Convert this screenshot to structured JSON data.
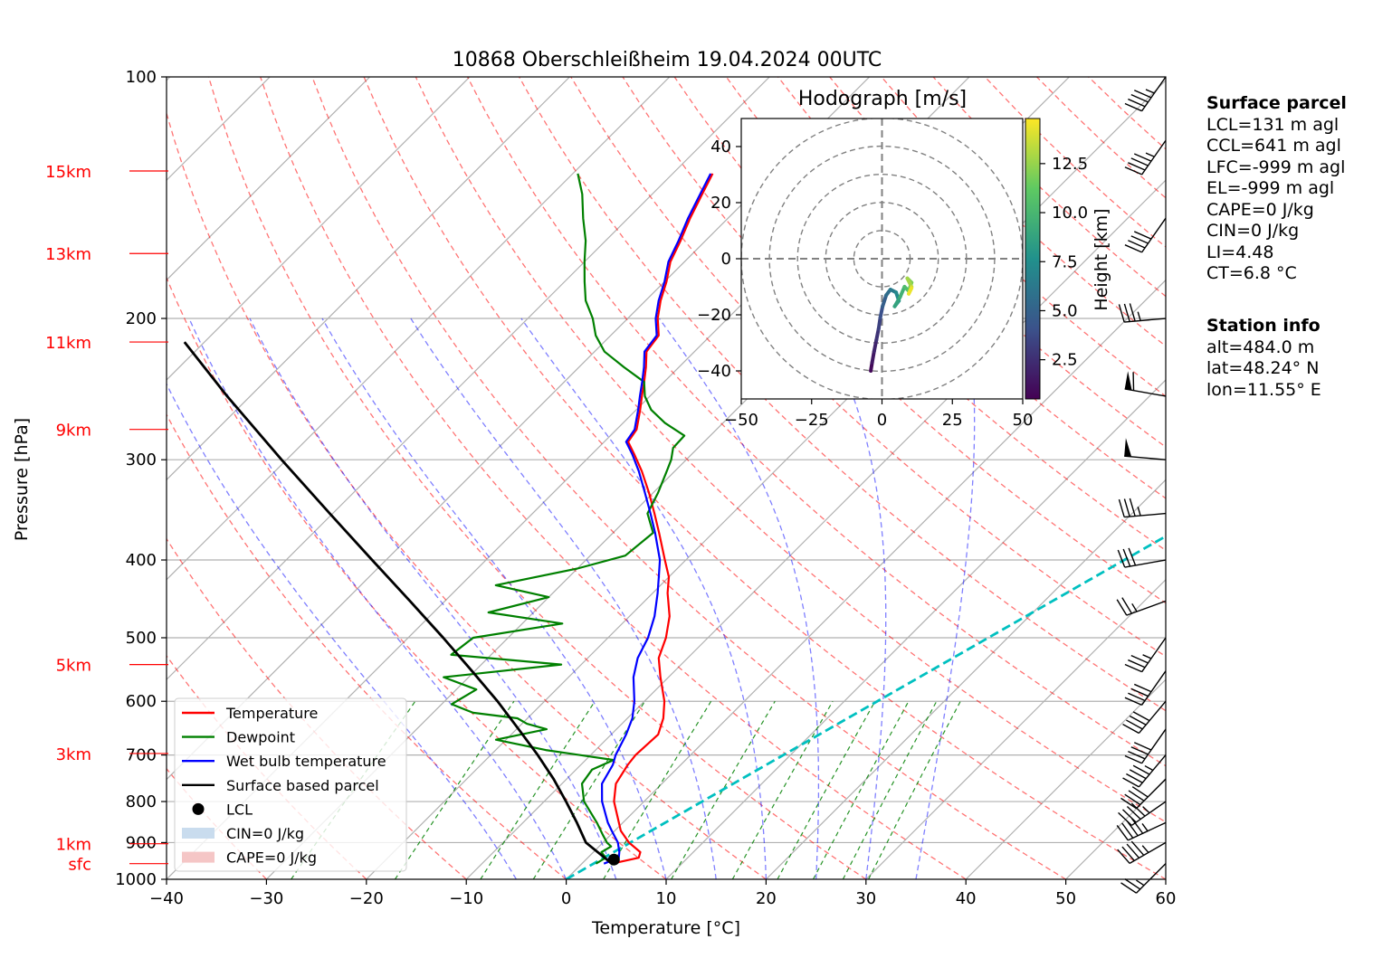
{
  "chart_data": [
    {
      "type": "line",
      "title": "10868 Oberschleißheim 19.04.2024 00UTC",
      "xlabel": "Temperature [°C]",
      "ylabel": "Pressure [hPa]",
      "xlim": [
        -40,
        60
      ],
      "ylim": [
        1000,
        100
      ],
      "y_scale": "log",
      "skew_degrees": 45,
      "grid": true,
      "x_ticks": [
        "−40",
        "−30",
        "−20",
        "−10",
        "0",
        "10",
        "20",
        "30",
        "40",
        "50",
        "60"
      ],
      "y_ticks": [
        "100",
        "200",
        "300",
        "400",
        "500",
        "600",
        "700",
        "800",
        "900",
        "1000"
      ],
      "height_markers": [
        {
          "label": "15km",
          "p": 131
        },
        {
          "label": "13km",
          "p": 166
        },
        {
          "label": "11km",
          "p": 214
        },
        {
          "label": "9km",
          "p": 275
        },
        {
          "label": "5km",
          "p": 540
        },
        {
          "label": "3km",
          "p": 697
        },
        {
          "label": "1km",
          "p": 903
        },
        {
          "label": "sfc",
          "p": 956
        }
      ],
      "legend_location": "lower left",
      "legend": [
        {
          "label": "Temperature",
          "kind": "line",
          "color": "#ff0000"
        },
        {
          "label": "Dewpoint",
          "kind": "line",
          "color": "#008000"
        },
        {
          "label": "Wet bulb temperature",
          "kind": "line",
          "color": "#0000ff"
        },
        {
          "label": "Surface based parcel",
          "kind": "line",
          "color": "#000000"
        },
        {
          "label": "LCL",
          "kind": "dot",
          "color": "#000000"
        },
        {
          "label": "CIN=0 J/kg",
          "kind": "patch",
          "color": "#c9dcee"
        },
        {
          "label": "CAPE=0 J/kg",
          "kind": "patch",
          "color": "#f5c6c6"
        }
      ],
      "series": [
        {
          "name": "Temperature",
          "color": "#ff0000",
          "points": [
            [
              956,
              3.0
            ],
            [
              940,
              5.1
            ],
            [
              925,
              4.7
            ],
            [
              900,
              2.6
            ],
            [
              870,
              0.6
            ],
            [
              850,
              -0.4
            ],
            [
              800,
              -3.0
            ],
            [
              760,
              -4.6
            ],
            [
              720,
              -5.3
            ],
            [
              700,
              -5.5
            ],
            [
              660,
              -5.3
            ],
            [
              630,
              -6.4
            ],
            [
              600,
              -8.0
            ],
            [
              560,
              -10.8
            ],
            [
              530,
              -12.9
            ],
            [
              500,
              -14.2
            ],
            [
              470,
              -16.0
            ],
            [
              440,
              -18.5
            ],
            [
              420,
              -20.0
            ],
            [
              400,
              -22.1
            ],
            [
              370,
              -25.4
            ],
            [
              350,
              -27.8
            ],
            [
              330,
              -30.4
            ],
            [
              310,
              -33.3
            ],
            [
              295,
              -35.8
            ],
            [
              285,
              -37.6
            ],
            [
              275,
              -38.0
            ],
            [
              260,
              -39.6
            ],
            [
              250,
              -40.8
            ],
            [
              240,
              -42.0
            ],
            [
              230,
              -43.3
            ],
            [
              220,
              -44.8
            ],
            [
              210,
              -45.2
            ],
            [
              200,
              -47.0
            ],
            [
              190,
              -48.5
            ],
            [
              180,
              -49.8
            ],
            [
              170,
              -51.4
            ],
            [
              160,
              -52.5
            ],
            [
              150,
              -53.8
            ],
            [
              140,
              -55.0
            ],
            [
              132,
              -56.0
            ]
          ]
        },
        {
          "name": "Dewpoint",
          "color": "#008000",
          "points": [
            [
              956,
              1.4
            ],
            [
              940,
              1.8
            ],
            [
              925,
              0.8
            ],
            [
              910,
              1.2
            ],
            [
              900,
              0.4
            ],
            [
              880,
              -0.8
            ],
            [
              850,
              -2.6
            ],
            [
              800,
              -6.0
            ],
            [
              760,
              -8.0
            ],
            [
              730,
              -8.4
            ],
            [
              710,
              -7.2
            ],
            [
              690,
              -15.0
            ],
            [
              670,
              -21.0
            ],
            [
              650,
              -17.0
            ],
            [
              640,
              -19.5
            ],
            [
              630,
              -21.0
            ],
            [
              620,
              -26.0
            ],
            [
              605,
              -29.0
            ],
            [
              580,
              -28.0
            ],
            [
              560,
              -32.5
            ],
            [
              540,
              -22.0
            ],
            [
              525,
              -34.0
            ],
            [
              500,
              -33.5
            ],
            [
              480,
              -26.0
            ],
            [
              465,
              -34.5
            ],
            [
              445,
              -30.0
            ],
            [
              430,
              -36.5
            ],
            [
              410,
              -30.0
            ],
            [
              395,
              -26.5
            ],
            [
              370,
              -26.0
            ],
            [
              350,
              -28.5
            ],
            [
              330,
              -29.5
            ],
            [
              310,
              -30.8
            ],
            [
              300,
              -31.5
            ],
            [
              290,
              -32.5
            ],
            [
              280,
              -32.6
            ],
            [
              270,
              -35.8
            ],
            [
              260,
              -38.5
            ],
            [
              250,
              -40.5
            ],
            [
              240,
              -42.0
            ],
            [
              230,
              -45.5
            ],
            [
              220,
              -49.0
            ],
            [
              210,
              -51.5
            ],
            [
              200,
              -53.5
            ],
            [
              190,
              -56.0
            ],
            [
              180,
              -58.0
            ],
            [
              170,
              -60.0
            ],
            [
              160,
              -62.0
            ],
            [
              150,
              -64.5
            ],
            [
              140,
              -67.0
            ],
            [
              132,
              -69.5
            ]
          ]
        },
        {
          "name": "Wet bulb temperature",
          "color": "#0000ff",
          "points": [
            [
              956,
              2.2
            ],
            [
              940,
              3.1
            ],
            [
              925,
              2.6
            ],
            [
              900,
              1.5
            ],
            [
              870,
              -0.3
            ],
            [
              850,
              -1.5
            ],
            [
              800,
              -4.2
            ],
            [
              760,
              -6.0
            ],
            [
              720,
              -6.8
            ],
            [
              700,
              -7.5
            ],
            [
              660,
              -8.5
            ],
            [
              630,
              -9.5
            ],
            [
              600,
              -11.0
            ],
            [
              560,
              -13.5
            ],
            [
              530,
              -15.0
            ],
            [
              500,
              -16.0
            ],
            [
              470,
              -17.5
            ],
            [
              440,
              -19.5
            ],
            [
              420,
              -21.0
            ],
            [
              400,
              -22.6
            ],
            [
              370,
              -25.8
            ],
            [
              350,
              -28.2
            ],
            [
              330,
              -30.8
            ],
            [
              310,
              -33.6
            ],
            [
              295,
              -36.0
            ],
            [
              285,
              -37.8
            ],
            [
              275,
              -38.2
            ],
            [
              260,
              -39.8
            ],
            [
              250,
              -41.0
            ],
            [
              240,
              -42.2
            ],
            [
              230,
              -43.5
            ],
            [
              220,
              -45.0
            ],
            [
              210,
              -45.4
            ],
            [
              200,
              -47.2
            ],
            [
              190,
              -48.7
            ],
            [
              180,
              -50.0
            ],
            [
              170,
              -51.6
            ],
            [
              160,
              -52.7
            ],
            [
              150,
              -54.0
            ],
            [
              140,
              -55.2
            ],
            [
              132,
              -56.2
            ]
          ]
        },
        {
          "name": "Surface based parcel",
          "color": "#000000",
          "points": [
            [
              956,
              3.0
            ],
            [
              900,
              -1.7
            ],
            [
              850,
              -4.6
            ],
            [
              800,
              -7.8
            ],
            [
              750,
              -11.3
            ],
            [
              700,
              -15.3
            ],
            [
              650,
              -19.8
            ],
            [
              600,
              -24.7
            ],
            [
              550,
              -30.3
            ],
            [
              500,
              -36.5
            ],
            [
              450,
              -43.5
            ],
            [
              400,
              -51.4
            ],
            [
              350,
              -60.3
            ],
            [
              300,
              -70.5
            ],
            [
              250,
              -82.3
            ],
            [
              214,
              -92.0
            ]
          ]
        }
      ],
      "lcl": {
        "p": 945,
        "t": 2.8
      },
      "freezing_level_line": {
        "color": "#00c0c0",
        "points": [
          [
            1000,
            0
          ],
          [
            100,
            60
          ]
        ]
      }
    },
    {
      "type": "line",
      "title": "Hodograph [m/s]",
      "xlim": [
        -50,
        50
      ],
      "ylim": [
        -50,
        50
      ],
      "x_ticks": [
        "−50",
        "−25",
        "0",
        "25",
        "50"
      ],
      "y_ticks": [
        "−40",
        "−20",
        "0",
        "20",
        "40"
      ],
      "ring_speeds": [
        10,
        20,
        30,
        40,
        50
      ],
      "colorbar": {
        "label": "Height [km]",
        "ticks": [
          "2.5",
          "5.0",
          "7.5",
          "10.0",
          "12.5"
        ],
        "range": [
          0.5,
          14.8
        ],
        "colormap": "viridis"
      },
      "points": [
        [
          -4,
          -40,
          0.5
        ],
        [
          -3.5,
          -37,
          1.2
        ],
        [
          -2.8,
          -33,
          1.8
        ],
        [
          -2,
          -29,
          2.4
        ],
        [
          -1.2,
          -25,
          3.0
        ],
        [
          -0.6,
          -21,
          3.7
        ],
        [
          0.2,
          -17,
          4.4
        ],
        [
          1.5,
          -13,
          5.2
        ],
        [
          3,
          -11,
          6.0
        ],
        [
          5,
          -12,
          6.8
        ],
        [
          6,
          -15,
          7.6
        ],
        [
          4.5,
          -17,
          8.4
        ],
        [
          6.5,
          -13.5,
          9.2
        ],
        [
          8,
          -10,
          10.0
        ],
        [
          9.5,
          -11.5,
          10.8
        ],
        [
          10.5,
          -8.5,
          11.6
        ],
        [
          9,
          -7,
          12.4
        ],
        [
          10.5,
          -10,
          13.2
        ],
        [
          9.5,
          -12.5,
          14.0
        ],
        [
          10.5,
          -10.5,
          14.8
        ]
      ]
    }
  ],
  "wind_barbs": [
    {
      "p": 956,
      "speed_kt": 25,
      "dir": 225
    },
    {
      "p": 900,
      "speed_kt": 45,
      "dir": 240
    },
    {
      "p": 850,
      "speed_kt": 45,
      "dir": 245
    },
    {
      "p": 800,
      "speed_kt": 45,
      "dir": 235
    },
    {
      "p": 750,
      "speed_kt": 40,
      "dir": 225
    },
    {
      "p": 700,
      "speed_kt": 45,
      "dir": 220
    },
    {
      "p": 650,
      "speed_kt": 40,
      "dir": 215
    },
    {
      "p": 600,
      "speed_kt": 40,
      "dir": 220
    },
    {
      "p": 550,
      "speed_kt": 40,
      "dir": 215
    },
    {
      "p": 500,
      "speed_kt": 35,
      "dir": 215
    },
    {
      "p": 450,
      "speed_kt": 25,
      "dir": 250
    },
    {
      "p": 400,
      "speed_kt": 30,
      "dir": 260
    },
    {
      "p": 350,
      "speed_kt": 35,
      "dir": 265
    },
    {
      "p": 300,
      "speed_kt": 50,
      "dir": 275
    },
    {
      "p": 250,
      "speed_kt": 60,
      "dir": 280
    },
    {
      "p": 200,
      "speed_kt": 35,
      "dir": 265
    },
    {
      "p": 150,
      "speed_kt": 40,
      "dir": 215
    },
    {
      "p": 120,
      "speed_kt": 45,
      "dir": 215
    },
    {
      "p": 100,
      "speed_kt": 45,
      "dir": 215
    }
  ],
  "side_panel": {
    "surface_parcel_title": "Surface parcel",
    "surface_parcel_lines": [
      "LCL=131 m agl",
      "CCL=641 m agl",
      "LFC=-999 m agl",
      "EL=-999 m agl",
      "CAPE=0 J/kg",
      "CIN=0 J/kg",
      "LI=4.48",
      "CT=6.8 °C"
    ],
    "station_title": "Station info",
    "station_lines": [
      "alt=484.0 m",
      "lat=48.24° N",
      "lon=11.55° E"
    ]
  }
}
